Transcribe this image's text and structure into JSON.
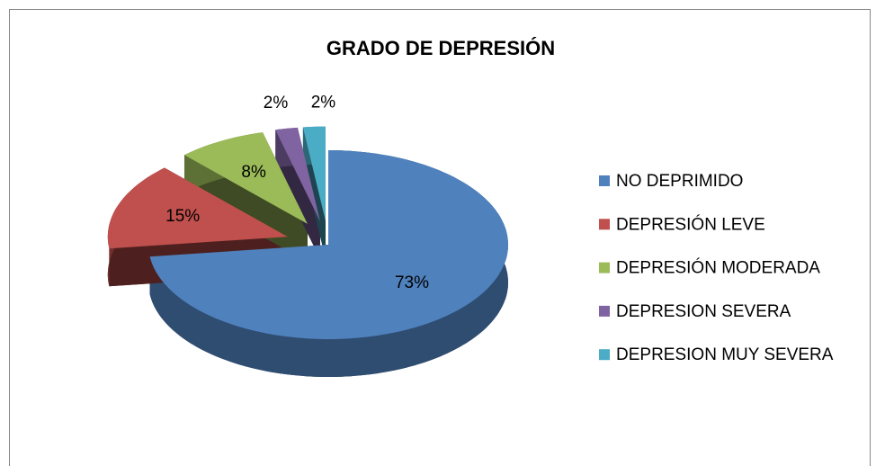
{
  "chart_data": {
    "type": "pie",
    "title": "GRADO DE DEPRESIÓN",
    "categories": [
      "NO DEPRIMIDO",
      "DEPRESIÓN LEVE",
      "DEPRESIÓN MODERADA",
      "DEPRESION SEVERA",
      "DEPRESION MUY SEVERA"
    ],
    "values": [
      73,
      15,
      8,
      2,
      2
    ],
    "value_labels": [
      "73%",
      "15%",
      "8%",
      "2%",
      "2%"
    ],
    "colors": [
      "#4f81bd",
      "#c0504d",
      "#9bbb59",
      "#8064a2",
      "#4bacc6"
    ],
    "legend": "right"
  }
}
